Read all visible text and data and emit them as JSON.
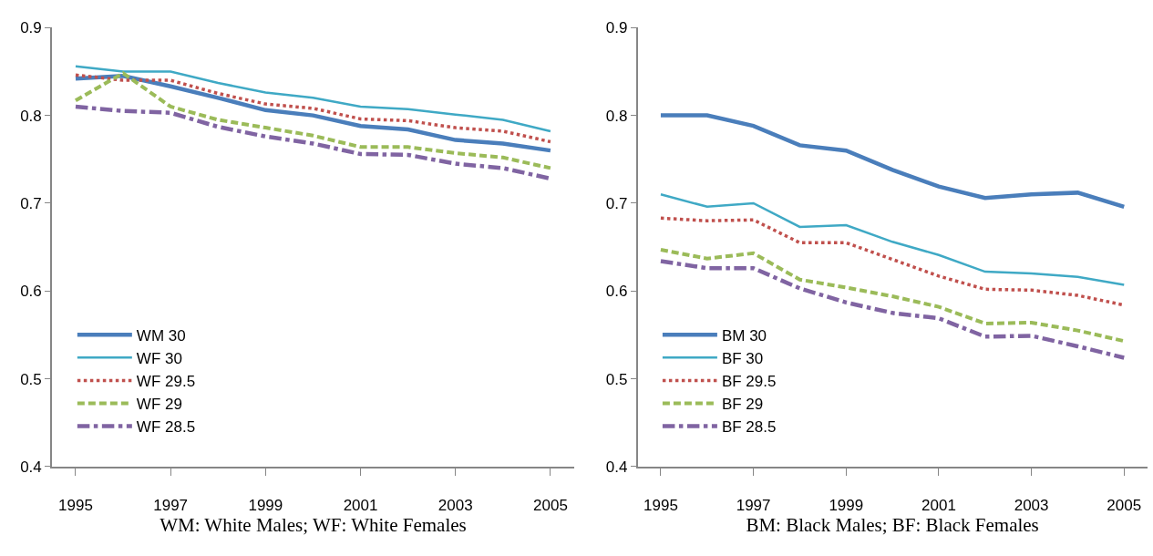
{
  "chart_data": [
    {
      "type": "line",
      "xlabel": "WM: White Males; WF: White Females",
      "x": [
        1995,
        1996,
        1997,
        1998,
        1999,
        2000,
        2001,
        2002,
        2003,
        2004,
        2005
      ],
      "xlim": [
        1994.5,
        2005.5
      ],
      "xticks": [
        1995,
        1997,
        1999,
        2001,
        2003,
        2005
      ],
      "ylim": [
        0.4,
        0.9
      ],
      "yticks": [
        0.4,
        0.5,
        0.6,
        0.7,
        0.8,
        0.9
      ],
      "legend": "bottom left",
      "series": [
        {
          "name": "WM 30",
          "color": "#4a7ebb",
          "line_style": "solid",
          "values": [
            0.842,
            0.845,
            0.833,
            0.82,
            0.806,
            0.8,
            0.788,
            0.784,
            0.772,
            0.768,
            0.76
          ]
        },
        {
          "name": "WF 30",
          "color": "#3fa9c5",
          "line_style": "solid",
          "values": [
            0.856,
            0.85,
            0.85,
            0.837,
            0.826,
            0.82,
            0.81,
            0.807,
            0.801,
            0.795,
            0.782
          ]
        },
        {
          "name": "WF 29.5",
          "color": "#c0504d",
          "line_style": "dotted",
          "values": [
            0.846,
            0.84,
            0.84,
            0.825,
            0.813,
            0.808,
            0.796,
            0.794,
            0.786,
            0.782,
            0.77
          ]
        },
        {
          "name": "WF 29",
          "color": "#9bbb59",
          "line_style": "dashed",
          "values": [
            0.817,
            0.848,
            0.81,
            0.795,
            0.786,
            0.777,
            0.764,
            0.764,
            0.757,
            0.752,
            0.74
          ]
        },
        {
          "name": "WF 28.5",
          "color": "#8064a2",
          "line_style": "dashdot",
          "values": [
            0.81,
            0.805,
            0.803,
            0.787,
            0.776,
            0.768,
            0.756,
            0.755,
            0.745,
            0.74,
            0.728
          ]
        }
      ]
    },
    {
      "type": "line",
      "xlabel": "BM: Black Males; BF: Black Females",
      "x": [
        1995,
        1996,
        1997,
        1998,
        1999,
        2000,
        2001,
        2002,
        2003,
        2004,
        2005
      ],
      "xlim": [
        1994.5,
        2005.5
      ],
      "xticks": [
        1995,
        1997,
        1999,
        2001,
        2003,
        2005
      ],
      "ylim": [
        0.4,
        0.9
      ],
      "yticks": [
        0.4,
        0.5,
        0.6,
        0.7,
        0.8,
        0.9
      ],
      "legend": "bottom left",
      "series": [
        {
          "name": "BM 30",
          "color": "#4a7ebb",
          "line_style": "solid",
          "values": [
            0.8,
            0.8,
            0.788,
            0.766,
            0.76,
            0.738,
            0.719,
            0.706,
            0.71,
            0.712,
            0.696
          ]
        },
        {
          "name": "BF 30",
          "color": "#3fa9c5",
          "line_style": "solid",
          "values": [
            0.71,
            0.696,
            0.7,
            0.673,
            0.675,
            0.656,
            0.641,
            0.622,
            0.62,
            0.616,
            0.607
          ]
        },
        {
          "name": "BF 29.5",
          "color": "#c0504d",
          "line_style": "dotted",
          "values": [
            0.683,
            0.68,
            0.681,
            0.655,
            0.655,
            0.636,
            0.617,
            0.602,
            0.601,
            0.595,
            0.584
          ]
        },
        {
          "name": "BF 29",
          "color": "#9bbb59",
          "line_style": "dashed",
          "values": [
            0.647,
            0.637,
            0.643,
            0.613,
            0.604,
            0.594,
            0.582,
            0.563,
            0.564,
            0.555,
            0.543
          ]
        },
        {
          "name": "BF 28.5",
          "color": "#8064a2",
          "line_style": "dashdot",
          "values": [
            0.634,
            0.626,
            0.626,
            0.603,
            0.587,
            0.575,
            0.569,
            0.548,
            0.549,
            0.537,
            0.524
          ]
        }
      ]
    }
  ]
}
